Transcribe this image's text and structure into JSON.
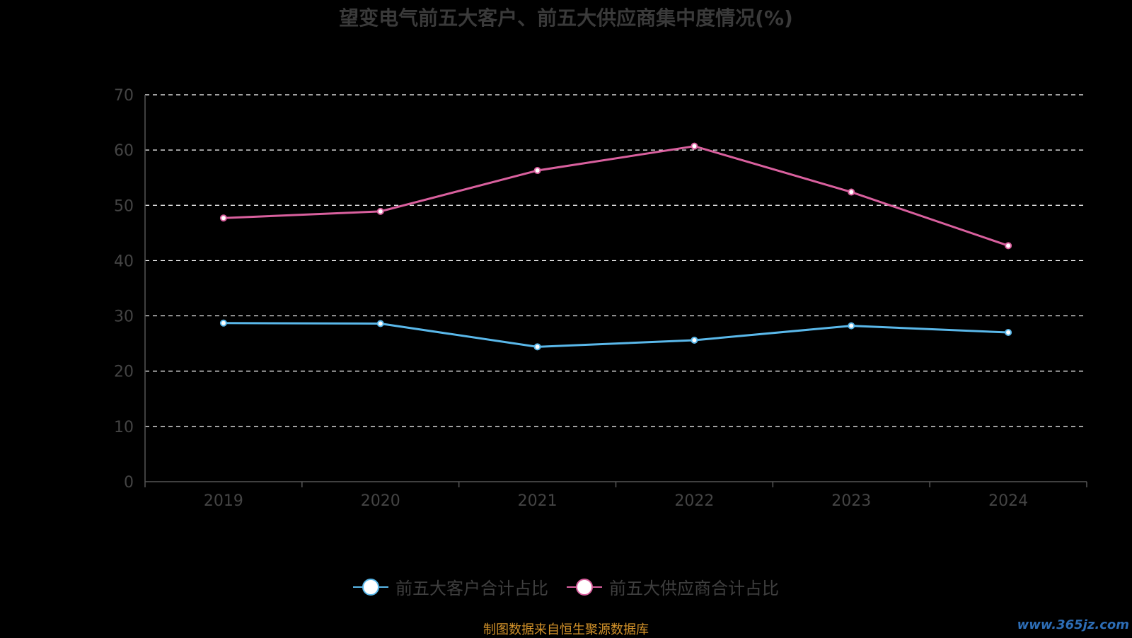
{
  "title": "望变电气前五大客户、前五大供应商集中度情况(%)",
  "source_note": "制图数据来自恒生聚源数据库",
  "watermark": "www.365jz.com",
  "colors": {
    "background": "#000000",
    "customers": "#5ab8ea",
    "suppliers": "#d9609e",
    "grid": "#ffffff",
    "axis": "#555555",
    "tick_text": "#444444"
  },
  "chart_data": {
    "type": "line",
    "title": "望变电气前五大客户、前五大供应商集中度情况(%)",
    "categories": [
      "2019",
      "2020",
      "2021",
      "2022",
      "2023",
      "2024"
    ],
    "ylim": [
      0,
      70
    ],
    "yticks": [
      0,
      10,
      20,
      30,
      40,
      50,
      60,
      70
    ],
    "grid": true,
    "legend_position": "bottom",
    "series": [
      {
        "name": "前五大客户合计占比",
        "values": [
          28.7,
          28.6,
          24.4,
          25.6,
          28.2,
          27.0
        ]
      },
      {
        "name": "前五大供应商合计占比",
        "values": [
          47.7,
          48.9,
          56.3,
          60.7,
          52.4,
          42.7
        ]
      }
    ]
  }
}
